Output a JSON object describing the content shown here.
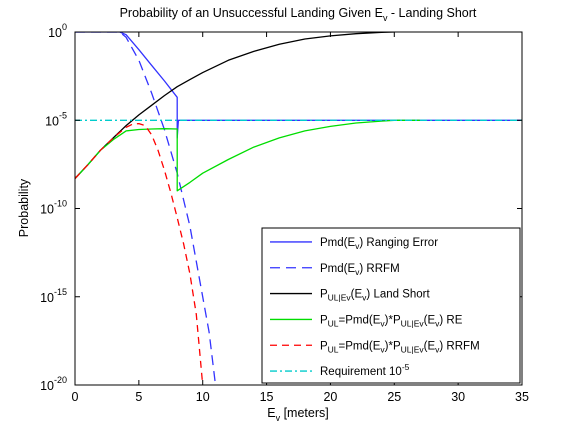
{
  "chart_data": {
    "type": "line",
    "title": {
      "main": "Probability of an Unsuccessful Landing Given E",
      "sub": "v",
      "tail": " - Landing Short"
    },
    "xlabel": {
      "main": "E",
      "sub": "v",
      "tail": " [meters]"
    },
    "ylabel": "Probability",
    "xlim": [
      0,
      35
    ],
    "ylim": [
      1e-20,
      1
    ],
    "yscale": "log",
    "xticks": [
      "0",
      "5",
      "10",
      "15",
      "20",
      "25",
      "30",
      "35"
    ],
    "yticks": [
      {
        "value": 1e-20,
        "base": "10",
        "exp": "-20"
      },
      {
        "value": 1e-15,
        "base": "10",
        "exp": "-15"
      },
      {
        "value": 1e-10,
        "base": "10",
        "exp": "-10"
      },
      {
        "value": 1e-05,
        "base": "10",
        "exp": "-5"
      },
      {
        "value": 1,
        "base": "10",
        "exp": "0"
      }
    ],
    "grid": false,
    "legend_position": "bottom-right",
    "series": [
      {
        "key": "pmd_re",
        "legend": [
          [
            "Pmd(E",
            ""
          ],
          [
            "v",
            "sub"
          ],
          [
            ") Ranging Error",
            ""
          ]
        ],
        "color": "#3333ff",
        "dash": "solid",
        "x": [
          0,
          3.5,
          4,
          5,
          6,
          7,
          8,
          8,
          8.1,
          9,
          10,
          11,
          35
        ],
        "y": [
          1,
          1,
          0.7,
          0.1,
          0.013,
          0.0017,
          0.0002,
          1e-06,
          1e-05,
          1e-05,
          1e-05,
          1e-05,
          1e-05
        ]
      },
      {
        "key": "pmd_rrfm",
        "legend": [
          [
            "Pmd(E",
            ""
          ],
          [
            "v",
            "sub"
          ],
          [
            ") RRFM",
            ""
          ]
        ],
        "color": "#3333ff",
        "dash": "long",
        "x": [
          0,
          3.5,
          4,
          5,
          6,
          7,
          8,
          9,
          10,
          10.5,
          11
        ],
        "y": [
          1,
          1,
          0.5,
          0.025,
          0.00035,
          3e-06,
          1e-08,
          1e-11,
          1e-15,
          1e-17,
          1e-20
        ]
      },
      {
        "key": "pul_ls",
        "legend": [
          [
            "P",
            ""
          ],
          [
            "UL|Ev",
            "sub"
          ],
          [
            "(E",
            ""
          ],
          [
            "v",
            "sub"
          ],
          [
            ") Land Short",
            ""
          ]
        ],
        "color": "#000000",
        "dash": "solid",
        "x": [
          0,
          1,
          2,
          3,
          4,
          5,
          6,
          7,
          8,
          9,
          10,
          12,
          14,
          16,
          18,
          20,
          22,
          24,
          25
        ],
        "y": [
          5e-09,
          3e-08,
          2e-07,
          1e-06,
          5e-06,
          2e-05,
          7e-05,
          0.00025,
          0.0008,
          0.002,
          0.005,
          0.025,
          0.08,
          0.2,
          0.4,
          0.6,
          0.8,
          0.95,
          1
        ]
      },
      {
        "key": "pul_re",
        "legend": [
          [
            "P",
            ""
          ],
          [
            "UL",
            "sub"
          ],
          [
            "=Pmd(E",
            ""
          ],
          [
            "v",
            "sub"
          ],
          [
            ")*P",
            ""
          ],
          [
            "UL|Ev",
            "sub"
          ],
          [
            "(E",
            ""
          ],
          [
            "v",
            "sub"
          ],
          [
            ") RE",
            ""
          ]
        ],
        "color": "#00dd00",
        "dash": "solid",
        "x": [
          0,
          1,
          2,
          3,
          4,
          5,
          6,
          7,
          8,
          8,
          9,
          10,
          12,
          14,
          16,
          18,
          20,
          22,
          24,
          25,
          27
        ],
        "y": [
          5e-09,
          3e-08,
          2e-07,
          8e-07,
          2.5e-06,
          3e-06,
          3.2e-06,
          3.3e-06,
          3.2e-06,
          1e-09,
          3e-09,
          1e-08,
          6e-08,
          3e-07,
          1e-06,
          2.5e-06,
          4.5e-06,
          7e-06,
          9e-06,
          1e-05,
          1e-05
        ]
      },
      {
        "key": "pul_rrfm",
        "legend": [
          [
            "P",
            ""
          ],
          [
            "UL",
            "sub"
          ],
          [
            "=Pmd(E",
            ""
          ],
          [
            "v",
            "sub"
          ],
          [
            ")*P",
            ""
          ],
          [
            "UL|Ev",
            "sub"
          ],
          [
            "(E",
            ""
          ],
          [
            "v",
            "sub"
          ],
          [
            ") RRFM",
            ""
          ]
        ],
        "color": "#ff0000",
        "dash": "medium",
        "x": [
          0,
          1,
          2,
          3,
          4,
          4.5,
          5,
          5.5,
          6,
          6.5,
          7,
          7.5,
          8,
          8.5,
          9,
          9.5,
          10
        ],
        "y": [
          5e-09,
          3e-08,
          2e-07,
          1e-06,
          4e-06,
          6e-06,
          6.5e-06,
          5e-06,
          1.5e-06,
          2e-07,
          1.5e-08,
          8e-10,
          3e-11,
          1e-12,
          2e-14,
          1e-16,
          1e-20
        ]
      },
      {
        "key": "req",
        "legend": [
          [
            "Requirement 10",
            ""
          ],
          [
            "-5",
            "sup"
          ]
        ],
        "color": "#00cccc",
        "dash": "dashdot",
        "x": [
          0,
          35
        ],
        "y": [
          1e-05,
          1e-05
        ]
      }
    ]
  }
}
